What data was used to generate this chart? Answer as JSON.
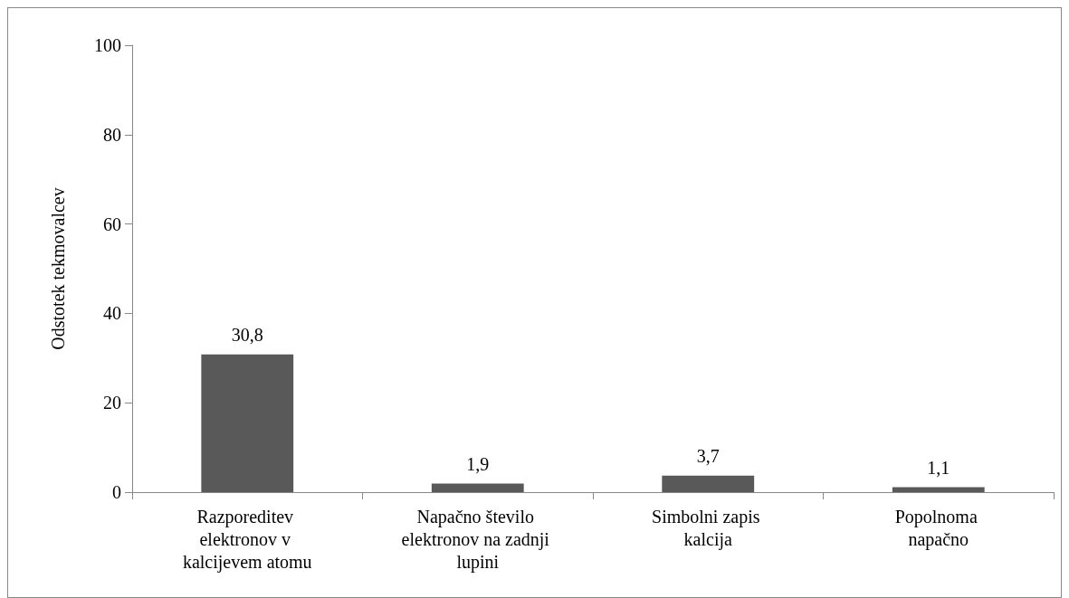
{
  "chart_data": {
    "type": "bar",
    "ylabel": "Odstotek tekmovalcev",
    "categories": [
      "Razporeditev elektronov v kalcijevem atomu",
      "Napačno število elektronov na zadnji lupini",
      "Simbolni zapis kalcija",
      "Popolnoma napačno"
    ],
    "values": [
      30.8,
      1.9,
      3.7,
      1.1
    ],
    "value_labels": [
      "30,8",
      "1,9",
      "3,7",
      "1,1"
    ],
    "color": "#595959",
    "ylim": [
      0,
      100
    ],
    "yticks": [
      0,
      20,
      40,
      60,
      80,
      100
    ],
    "grid": false
  }
}
